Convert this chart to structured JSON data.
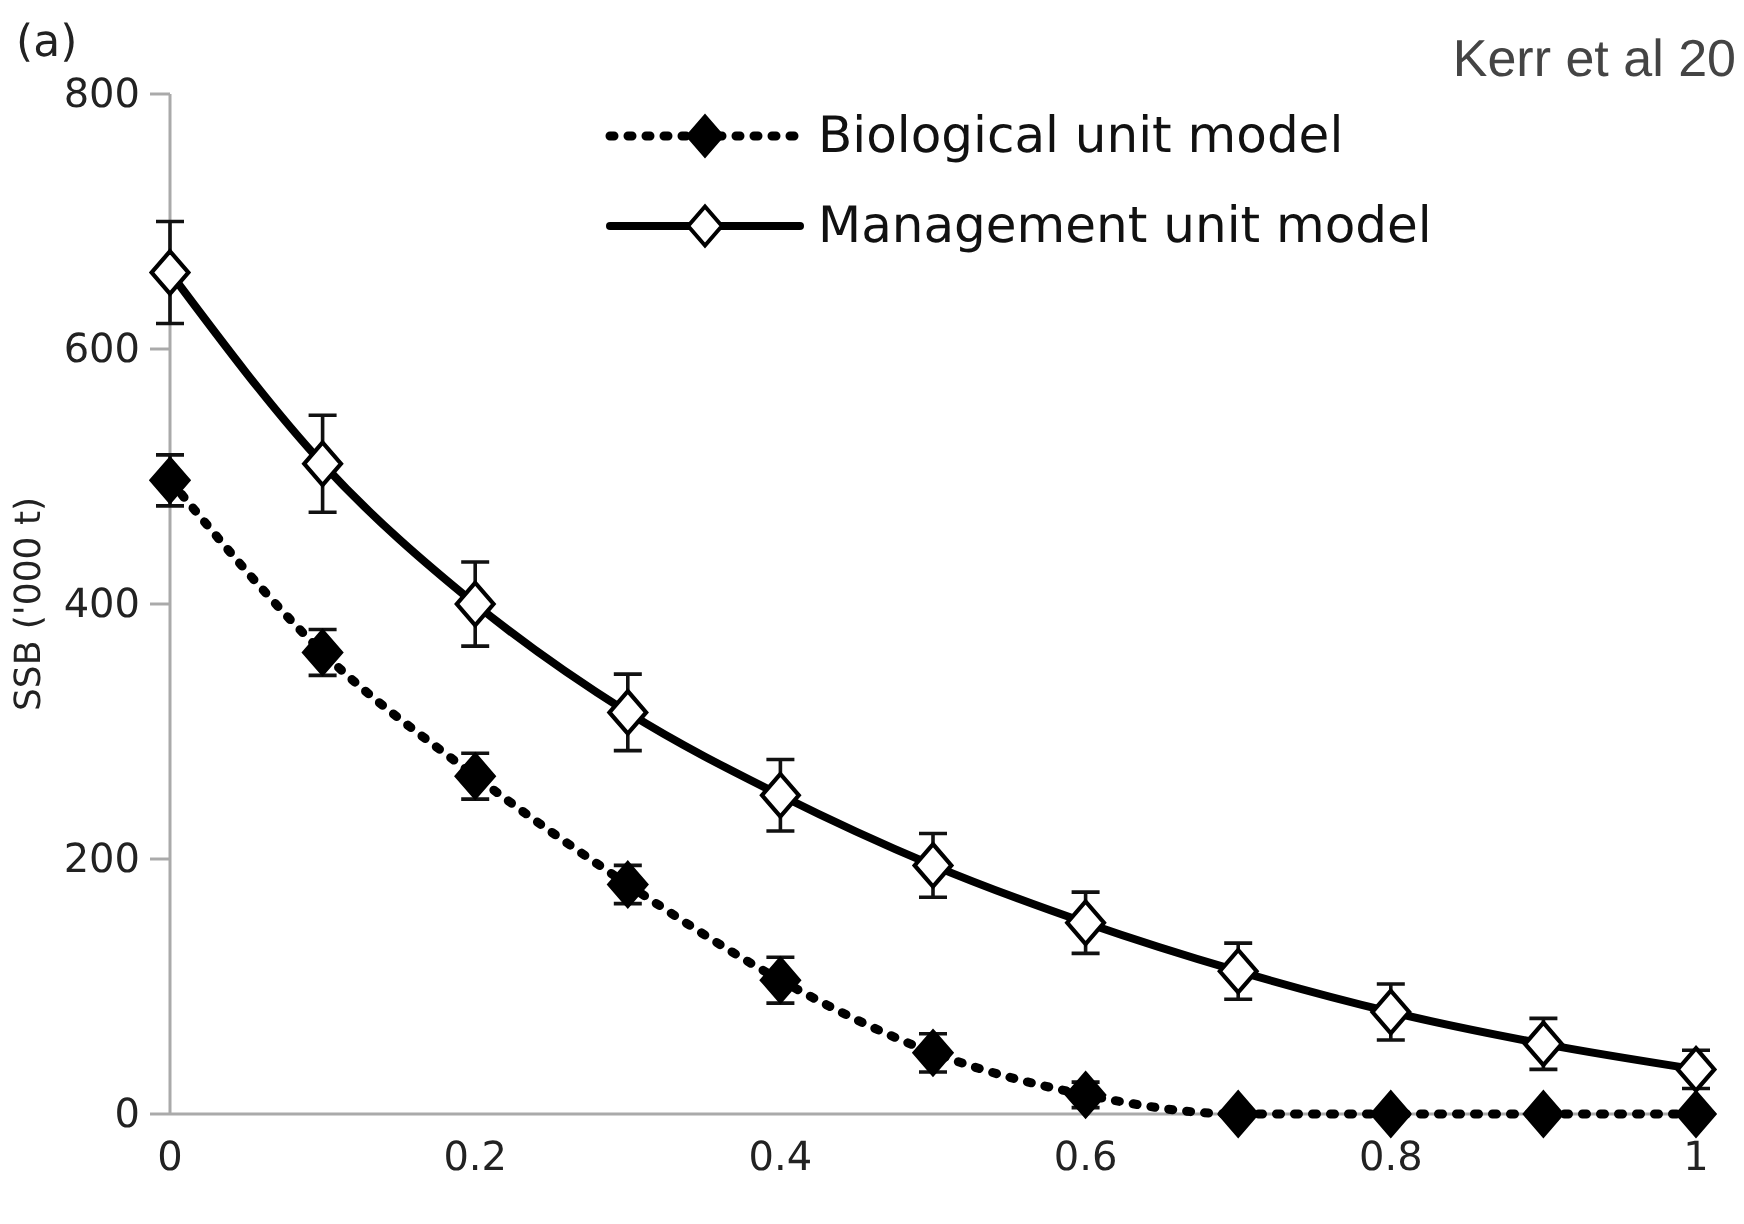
{
  "chart_data": {
    "type": "line",
    "ylabel": "SSB ('000 t)",
    "annotations": [
      "(a)",
      "Kerr et al 20"
    ],
    "x": [
      0,
      0.1,
      0.2,
      0.3,
      0.4,
      0.5,
      0.6,
      0.7,
      0.8,
      0.9,
      1
    ],
    "xlim": [
      0,
      1
    ],
    "xticks": [
      0,
      0.2,
      0.4,
      0.6,
      0.8,
      1
    ],
    "ylim": [
      0,
      800
    ],
    "yticks": [
      0,
      200,
      400,
      600,
      800
    ],
    "grid": false,
    "legend": "top right",
    "series": [
      {
        "name": "Biological unit model",
        "color": "#000000",
        "line_style": "dotted",
        "marker": "diamond",
        "values": [
          497,
          362,
          265,
          180,
          105,
          48,
          15,
          0,
          0,
          0,
          0
        ],
        "errors": [
          20,
          18,
          18,
          15,
          18,
          15,
          10,
          null,
          null,
          null,
          null
        ]
      },
      {
        "name": "Management unit model",
        "color": "#000000",
        "line_style": "solid",
        "marker": "diamond",
        "values": [
          660,
          510,
          400,
          315,
          250,
          195,
          150,
          112,
          80,
          55,
          35
        ],
        "errors": [
          40,
          38,
          33,
          30,
          28,
          25,
          24,
          22,
          22,
          20,
          15
        ]
      }
    ]
  }
}
